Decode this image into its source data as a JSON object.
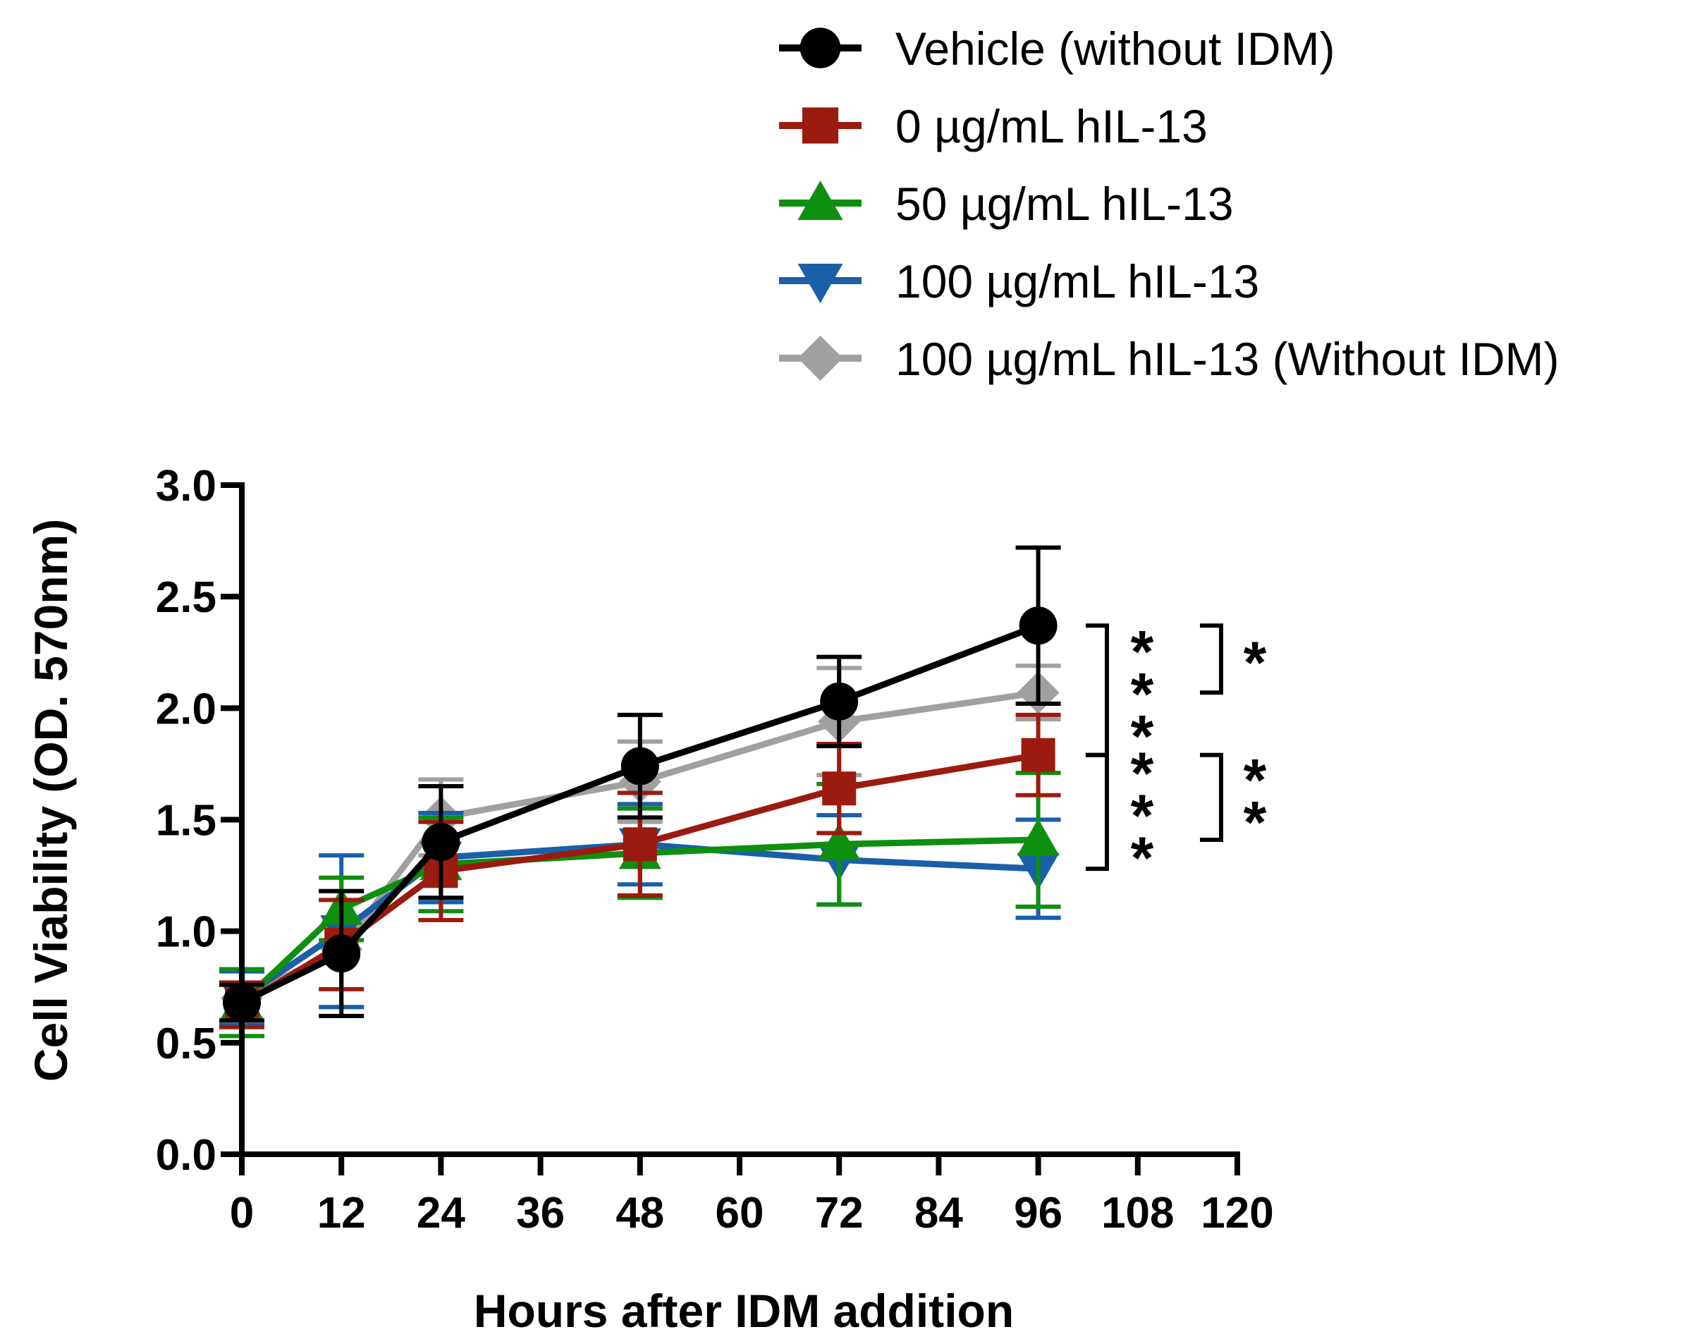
{
  "chart_data": {
    "type": "line",
    "title": "",
    "xlabel": "Hours after IDM addition",
    "ylabel": "Cell Viability (OD. 570nm)",
    "xlim": [
      0,
      120
    ],
    "ylim": [
      0,
      3
    ],
    "xticks": [
      0,
      12,
      24,
      36,
      48,
      60,
      72,
      84,
      96,
      108,
      120
    ],
    "xtick_labels": [
      "0",
      "12",
      "24",
      "36",
      "48",
      "60",
      "72",
      "84",
      "96",
      "108",
      "120"
    ],
    "yticks": [
      0,
      0.5,
      1,
      1.5,
      2,
      2.5,
      3
    ],
    "ytick_labels": [
      "0.0",
      "0.5",
      "1.0",
      "1.5",
      "2.0",
      "2.5",
      "3.0"
    ],
    "legend_position": "top-right",
    "x": [
      0,
      12,
      24,
      48,
      72,
      96
    ],
    "series": [
      {
        "name": "100 µg/mL hIL-13 (Without IDM)",
        "color": "#a0a0a0",
        "marker": "diamond",
        "values": [
          0.7,
          0.92,
          1.51,
          1.67,
          1.94,
          2.07
        ],
        "errors": [
          0.12,
          0.26,
          0.17,
          0.18,
          0.24,
          0.12
        ]
      },
      {
        "name": "100 µg/mL hIL-13",
        "color": "#1a5fa8",
        "marker": "triangle-down",
        "values": [
          0.7,
          1.0,
          1.33,
          1.39,
          1.32,
          1.28
        ],
        "errors": [
          0.12,
          0.34,
          0.2,
          0.18,
          0.2,
          0.22
        ]
      },
      {
        "name": "50 µg/mL hIL-13",
        "color": "#0f8f0f",
        "marker": "triangle-up",
        "values": [
          0.68,
          1.1,
          1.3,
          1.35,
          1.39,
          1.41
        ],
        "errors": [
          0.15,
          0.14,
          0.21,
          0.2,
          0.27,
          0.3
        ]
      },
      {
        "name": "0 µg/mL hIL-13",
        "color": "#9b1b0f",
        "marker": "square",
        "values": [
          0.67,
          0.94,
          1.27,
          1.39,
          1.64,
          1.79
        ],
        "errors": [
          0.1,
          0.2,
          0.22,
          0.23,
          0.2,
          0.18
        ]
      },
      {
        "name": "Vehicle (without IDM)",
        "color": "#000000",
        "marker": "circle",
        "values": [
          0.68,
          0.9,
          1.4,
          1.74,
          2.03,
          2.37
        ],
        "errors": [
          0.08,
          0.28,
          0.25,
          0.23,
          0.2,
          0.35
        ]
      }
    ],
    "legend_order": [
      4,
      3,
      2,
      1,
      0
    ],
    "annotations": [
      {
        "text": "***",
        "bracket_y": [
          1.79,
          2.37
        ],
        "level": "inner"
      },
      {
        "text": "*",
        "bracket_y": [
          2.07,
          2.37
        ],
        "level": "outer"
      },
      {
        "text": "***",
        "bracket_y": [
          1.28,
          1.79
        ],
        "level": "inner"
      },
      {
        "text": "**",
        "bracket_y": [
          1.41,
          1.79
        ],
        "level": "outer"
      }
    ]
  }
}
